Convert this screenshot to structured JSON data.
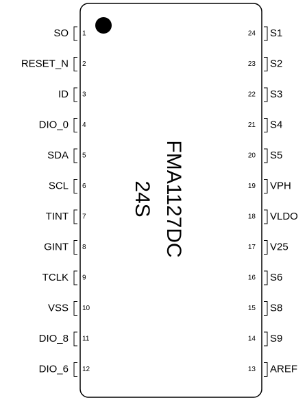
{
  "chip": {
    "name": "FMA1127DC",
    "package": "24S"
  },
  "left_pins": [
    {
      "number": "1",
      "label": "SO"
    },
    {
      "number": "2",
      "label": "RESET_N"
    },
    {
      "number": "3",
      "label": "ID"
    },
    {
      "number": "4",
      "label": "DIO_0"
    },
    {
      "number": "5",
      "label": "SDA"
    },
    {
      "number": "6",
      "label": "SCL"
    },
    {
      "number": "7",
      "label": "TINT"
    },
    {
      "number": "8",
      "label": "GINT"
    },
    {
      "number": "9",
      "label": "TCLK"
    },
    {
      "number": "10",
      "label": "VSS"
    },
    {
      "number": "11",
      "label": "DIO_8"
    },
    {
      "number": "12",
      "label": "DIO_6"
    }
  ],
  "right_pins": [
    {
      "number": "24",
      "label": "S1"
    },
    {
      "number": "23",
      "label": "S2"
    },
    {
      "number": "22",
      "label": "S3"
    },
    {
      "number": "21",
      "label": "S4"
    },
    {
      "number": "20",
      "label": "S5"
    },
    {
      "number": "19",
      "label": "VPH"
    },
    {
      "number": "18",
      "label": "VLDO"
    },
    {
      "number": "17",
      "label": "V25"
    },
    {
      "number": "16",
      "label": "S6"
    },
    {
      "number": "15",
      "label": "S8"
    },
    {
      "number": "14",
      "label": "S9"
    },
    {
      "number": "13",
      "label": "AREF"
    }
  ]
}
